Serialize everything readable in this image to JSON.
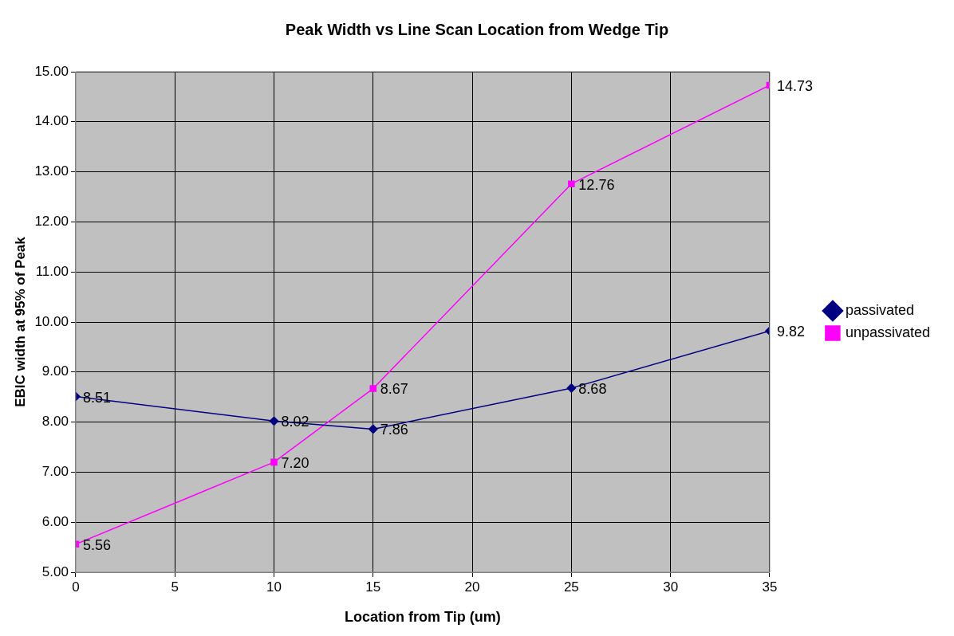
{
  "chart_data": {
    "type": "line",
    "title": "Peak Width vs Line Scan Location from Wedge Tip",
    "xlabel": "Location from Tip (um)",
    "ylabel": "EBIC width at 95% of Peak",
    "x": [
      0,
      10,
      15,
      25,
      35
    ],
    "series": [
      {
        "name": "passivated",
        "color": "#000080",
        "marker": "diamond",
        "values": [
          8.51,
          8.02,
          7.86,
          8.68,
          9.82
        ],
        "value_labels": [
          "8.51",
          "8.02",
          "7.86",
          "8.68",
          "9.82"
        ]
      },
      {
        "name": "unpassivated",
        "color": "#ff00ff",
        "marker": "square",
        "values": [
          5.56,
          7.2,
          8.67,
          12.76,
          14.73
        ],
        "value_labels": [
          "5.56",
          "7.20",
          "8.67",
          "12.76",
          "14.73"
        ]
      }
    ],
    "xlim": [
      0,
      35
    ],
    "xticks": [
      0,
      5,
      10,
      15,
      20,
      25,
      30,
      35
    ],
    "ylim": [
      5,
      15
    ],
    "yticks": [
      {
        "value": 5,
        "label": "5.00"
      },
      {
        "value": 6,
        "label": "6.00"
      },
      {
        "value": 7,
        "label": "7.00"
      },
      {
        "value": 8,
        "label": "8.00"
      },
      {
        "value": 9,
        "label": "9.00"
      },
      {
        "value": 10,
        "label": "10.00"
      },
      {
        "value": 11,
        "label": "11.00"
      },
      {
        "value": 12,
        "label": "12.00"
      },
      {
        "value": 13,
        "label": "13.00"
      },
      {
        "value": 14,
        "label": "14.00"
      },
      {
        "value": 15,
        "label": "15.00"
      }
    ],
    "grid": true,
    "legend": "right",
    "line_style": "solid"
  }
}
